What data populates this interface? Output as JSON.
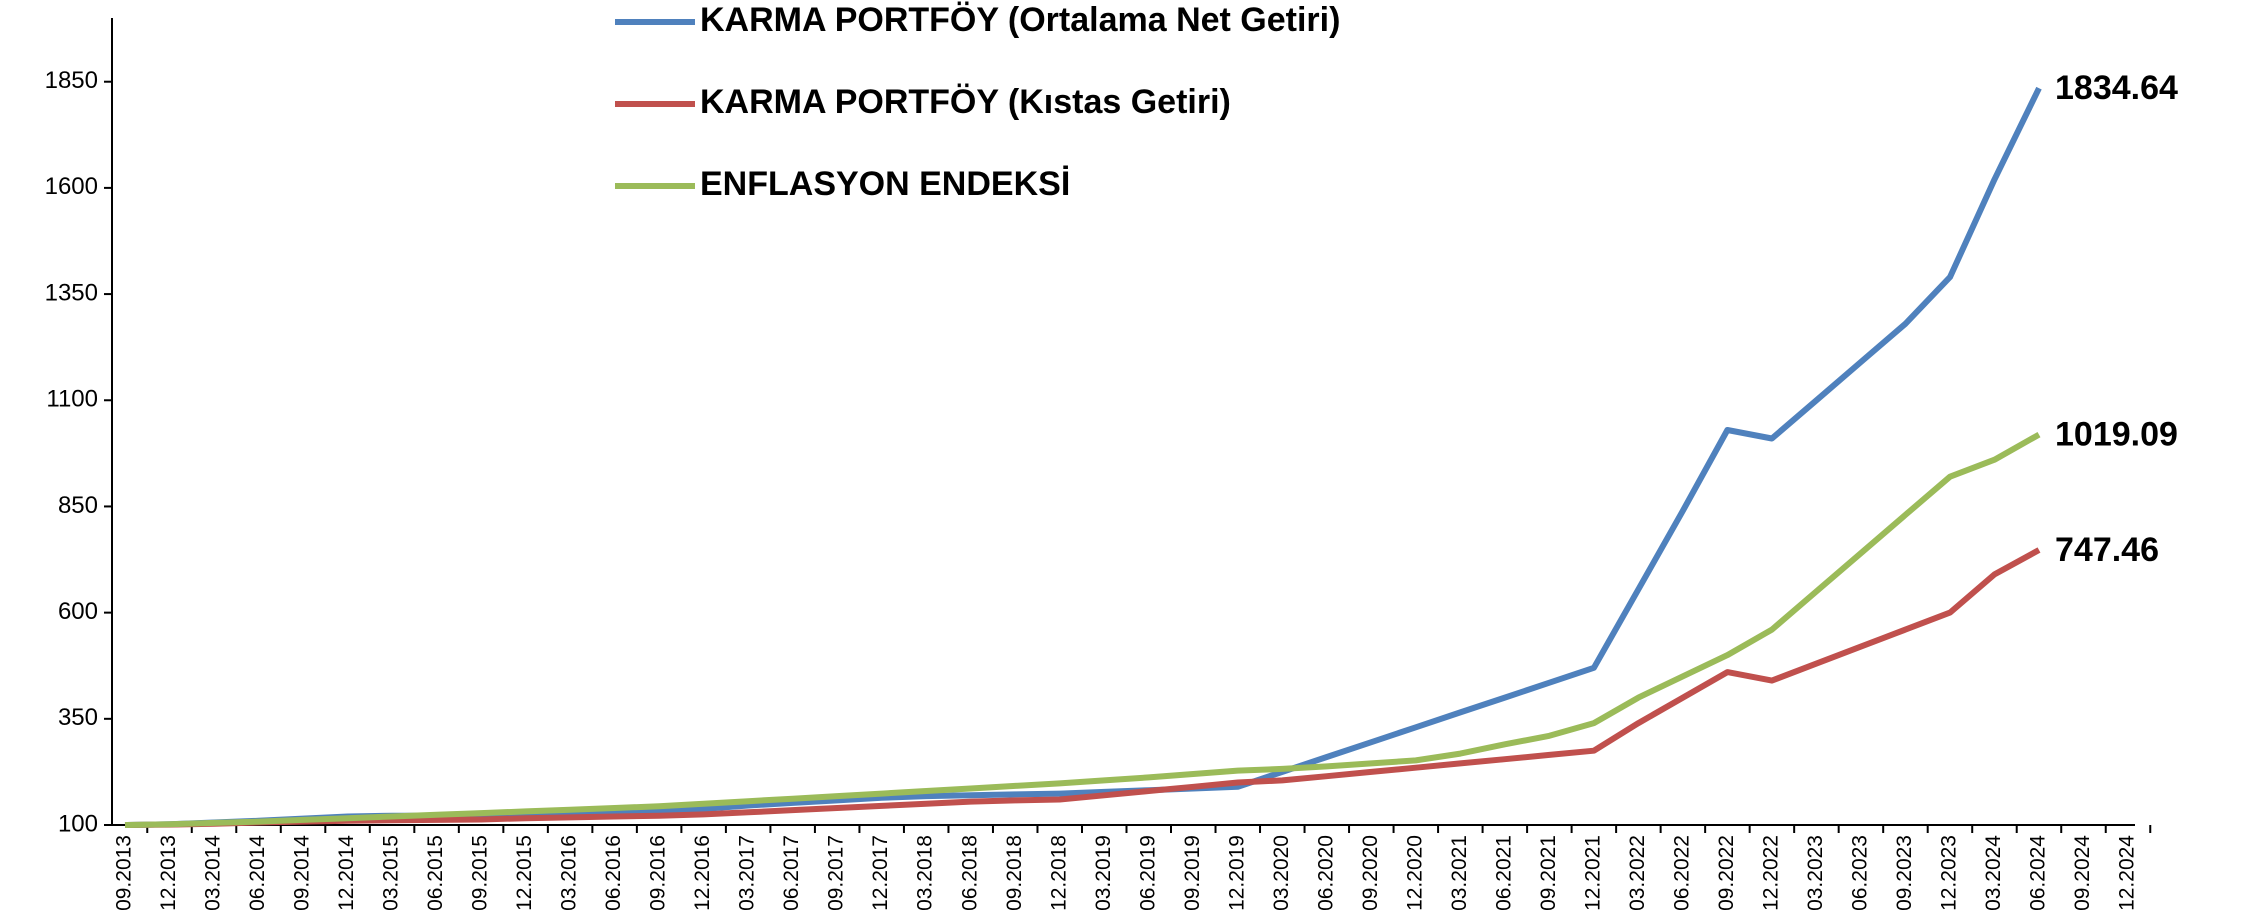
{
  "chart_data": {
    "type": "line",
    "categories": [
      "09.2013",
      "12.2013",
      "03.2014",
      "06.2014",
      "09.2014",
      "12.2014",
      "03.2015",
      "06.2015",
      "09.2015",
      "12.2015",
      "03.2016",
      "06.2016",
      "09.2016",
      "12.2016",
      "03.2017",
      "06.2017",
      "09.2017",
      "12.2017",
      "03.2018",
      "06.2018",
      "09.2018",
      "12.2018",
      "03.2019",
      "06.2019",
      "09.2019",
      "12.2019",
      "03.2020",
      "06.2020",
      "09.2020",
      "12.2020",
      "03.2021",
      "06.2021",
      "09.2021",
      "12.2021",
      "03.2022",
      "06.2022",
      "09.2022",
      "12.2022",
      "03.2023",
      "06.2023",
      "09.2023",
      "12.2023",
      "03.2024",
      "06.2024",
      "09.2024",
      "12.2024"
    ],
    "series": [
      {
        "name": "KARMA PORTFÖY (Ortalama Net Getiri)",
        "color": "#4f81bd",
        "values": [
          100,
          102,
          106,
          110,
          115,
          120,
          122,
          122,
          122,
          122,
          126,
          130,
          134,
          138,
          146,
          152,
          158,
          164,
          168,
          170,
          172,
          174,
          178,
          182,
          186,
          190,
          225,
          260,
          295,
          330,
          365,
          400,
          435,
          470,
          655,
          840,
          1030,
          1010,
          1100,
          1190,
          1280,
          1390,
          1620,
          1834.64,
          null,
          null
        ]
      },
      {
        "name": "KARMA PORTFÖY (Kıstas Getiri)",
        "color": "#c0504d",
        "values": [
          100,
          101,
          103,
          106,
          108,
          110,
          111,
          112,
          113,
          116,
          118,
          120,
          122,
          125,
          130,
          135,
          140,
          145,
          150,
          155,
          158,
          160,
          170,
          180,
          190,
          200,
          205,
          215,
          225,
          235,
          245,
          255,
          265,
          275,
          340,
          400,
          460,
          440,
          480,
          520,
          560,
          600,
          690,
          747.46,
          null,
          null
        ]
      },
      {
        "name": "ENFLASYON ENDEKSİ",
        "color": "#9bbb59",
        "values": [
          100,
          102,
          105,
          108,
          112,
          116,
          120,
          124,
          128,
          132,
          136,
          140,
          144,
          150,
          156,
          162,
          168,
          174,
          180,
          186,
          192,
          198,
          205,
          212,
          220,
          228,
          232,
          238,
          245,
          252,
          268,
          290,
          310,
          340,
          400,
          450,
          500,
          560,
          650,
          740,
          830,
          920,
          960,
          1019.09,
          null,
          null
        ]
      }
    ],
    "ylim": [
      100,
      2000
    ],
    "yticks": [
      100,
      350,
      600,
      850,
      1100,
      1350,
      1600,
      1850
    ]
  }
}
